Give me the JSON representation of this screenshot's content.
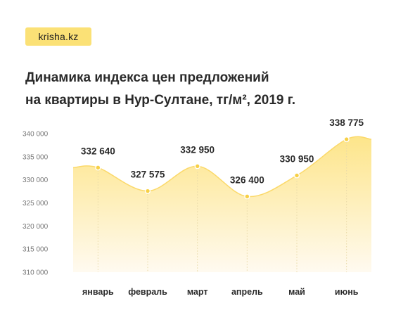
{
  "brand": {
    "name": "krisha.kz"
  },
  "title": {
    "line1": "Динамика индекса цен предложений",
    "line2": "на квартиры в Нур-Султане, тг/м², 2019 г."
  },
  "colors": {
    "accent": "#fbe176",
    "area_top": "#fde58a",
    "area_bottom": "#fffaf0",
    "line": "#fbd96a",
    "point": "#f7d046",
    "guide": "#e8d9a8",
    "text": "#2a2a2a"
  },
  "chart_data": {
    "type": "area",
    "title": "Динамика индекса цен предложений на квартиры в Нур-Султане, тг/м², 2019 г.",
    "xlabel": "",
    "ylabel": "",
    "categories": [
      "январь",
      "февраль",
      "март",
      "апрель",
      "май",
      "июнь"
    ],
    "values": [
      332640,
      327575,
      332950,
      326400,
      330950,
      338775
    ],
    "data_labels": [
      "332 640",
      "327 575",
      "332 950",
      "326 400",
      "330 950",
      "338 775"
    ],
    "ylim": [
      310000,
      340000
    ],
    "yticks": [
      310000,
      315000,
      320000,
      325000,
      330000,
      335000,
      340000
    ],
    "ytick_labels": [
      "310 000",
      "315 000",
      "320 000",
      "325 000",
      "330 000",
      "335 000",
      "340 000"
    ],
    "grid": false,
    "legend": "none"
  }
}
